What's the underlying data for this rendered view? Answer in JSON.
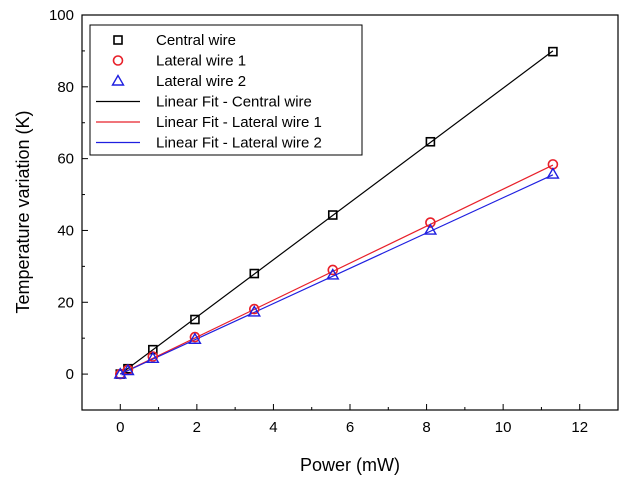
{
  "chart_data": {
    "type": "scatter",
    "title": "",
    "xlabel": "Power (mW)",
    "ylabel": "Temperature variation (K)",
    "xlim": [
      -1,
      13
    ],
    "ylim": [
      -10,
      100
    ],
    "xticks": [
      0,
      2,
      4,
      6,
      8,
      10,
      12
    ],
    "yticks": [
      0,
      20,
      40,
      60,
      80,
      100
    ],
    "grid": false,
    "legend_position": "top-left",
    "series": [
      {
        "name": "Central wire",
        "kind": "points",
        "marker": "square",
        "color": "#000000",
        "x": [
          0,
          0.2,
          0.85,
          1.95,
          3.5,
          5.55,
          8.1,
          11.3
        ],
        "y": [
          0,
          1.5,
          6.8,
          15.2,
          28,
          44.3,
          64.7,
          89.8
        ]
      },
      {
        "name": "Lateral wire 1",
        "kind": "points",
        "marker": "circle",
        "color": "#e8202a",
        "x": [
          0,
          0.2,
          0.85,
          1.95,
          3.5,
          5.55,
          8.1,
          11.3
        ],
        "y": [
          0,
          1.2,
          4.9,
          10.3,
          18.1,
          29,
          42.2,
          58.4
        ]
      },
      {
        "name": "Lateral wire 2",
        "kind": "points",
        "marker": "triangle",
        "color": "#1f1fe0",
        "x": [
          0,
          0.2,
          0.85,
          1.95,
          3.5,
          5.55,
          8.1,
          11.3
        ],
        "y": [
          0,
          1,
          4.4,
          9.7,
          17.3,
          27.6,
          40.1,
          55.7
        ]
      },
      {
        "name": "Linear Fit - Central wire",
        "kind": "line",
        "color": "#000000",
        "x": [
          0,
          11.3
        ],
        "y": [
          0,
          90
        ]
      },
      {
        "name": "Linear Fit - Lateral wire 1",
        "kind": "line",
        "color": "#e8202a",
        "x": [
          0,
          11.3
        ],
        "y": [
          0,
          58.2
        ]
      },
      {
        "name": "Linear Fit - Lateral wire 2",
        "kind": "line",
        "color": "#1f1fe0",
        "x": [
          0,
          11.3
        ],
        "y": [
          0,
          55.5
        ]
      }
    ]
  }
}
